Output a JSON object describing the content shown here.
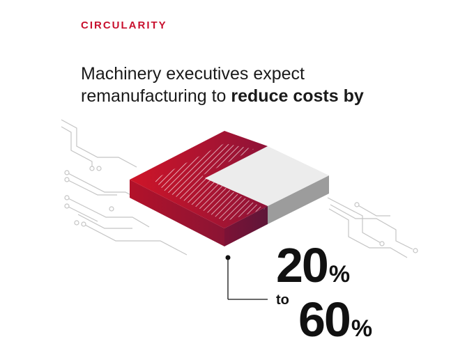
{
  "eyebrow": "CIRCULARITY",
  "headline": {
    "regular": "Machinery executives expect remanufacturing to ",
    "bold": "reduce costs by"
  },
  "stat": {
    "low_value": "20",
    "low_unit": "%",
    "connector": "to",
    "high_value": "60",
    "high_unit": "%"
  },
  "colors": {
    "accent": "#c8102e",
    "chip_red_top": "#d0182e",
    "chip_red_dark": "#7a1030",
    "chip_gray_top": "#ececec",
    "chip_gray_side": "#9a9a9a",
    "circuit": "#c4c4c4",
    "text": "#111111"
  }
}
